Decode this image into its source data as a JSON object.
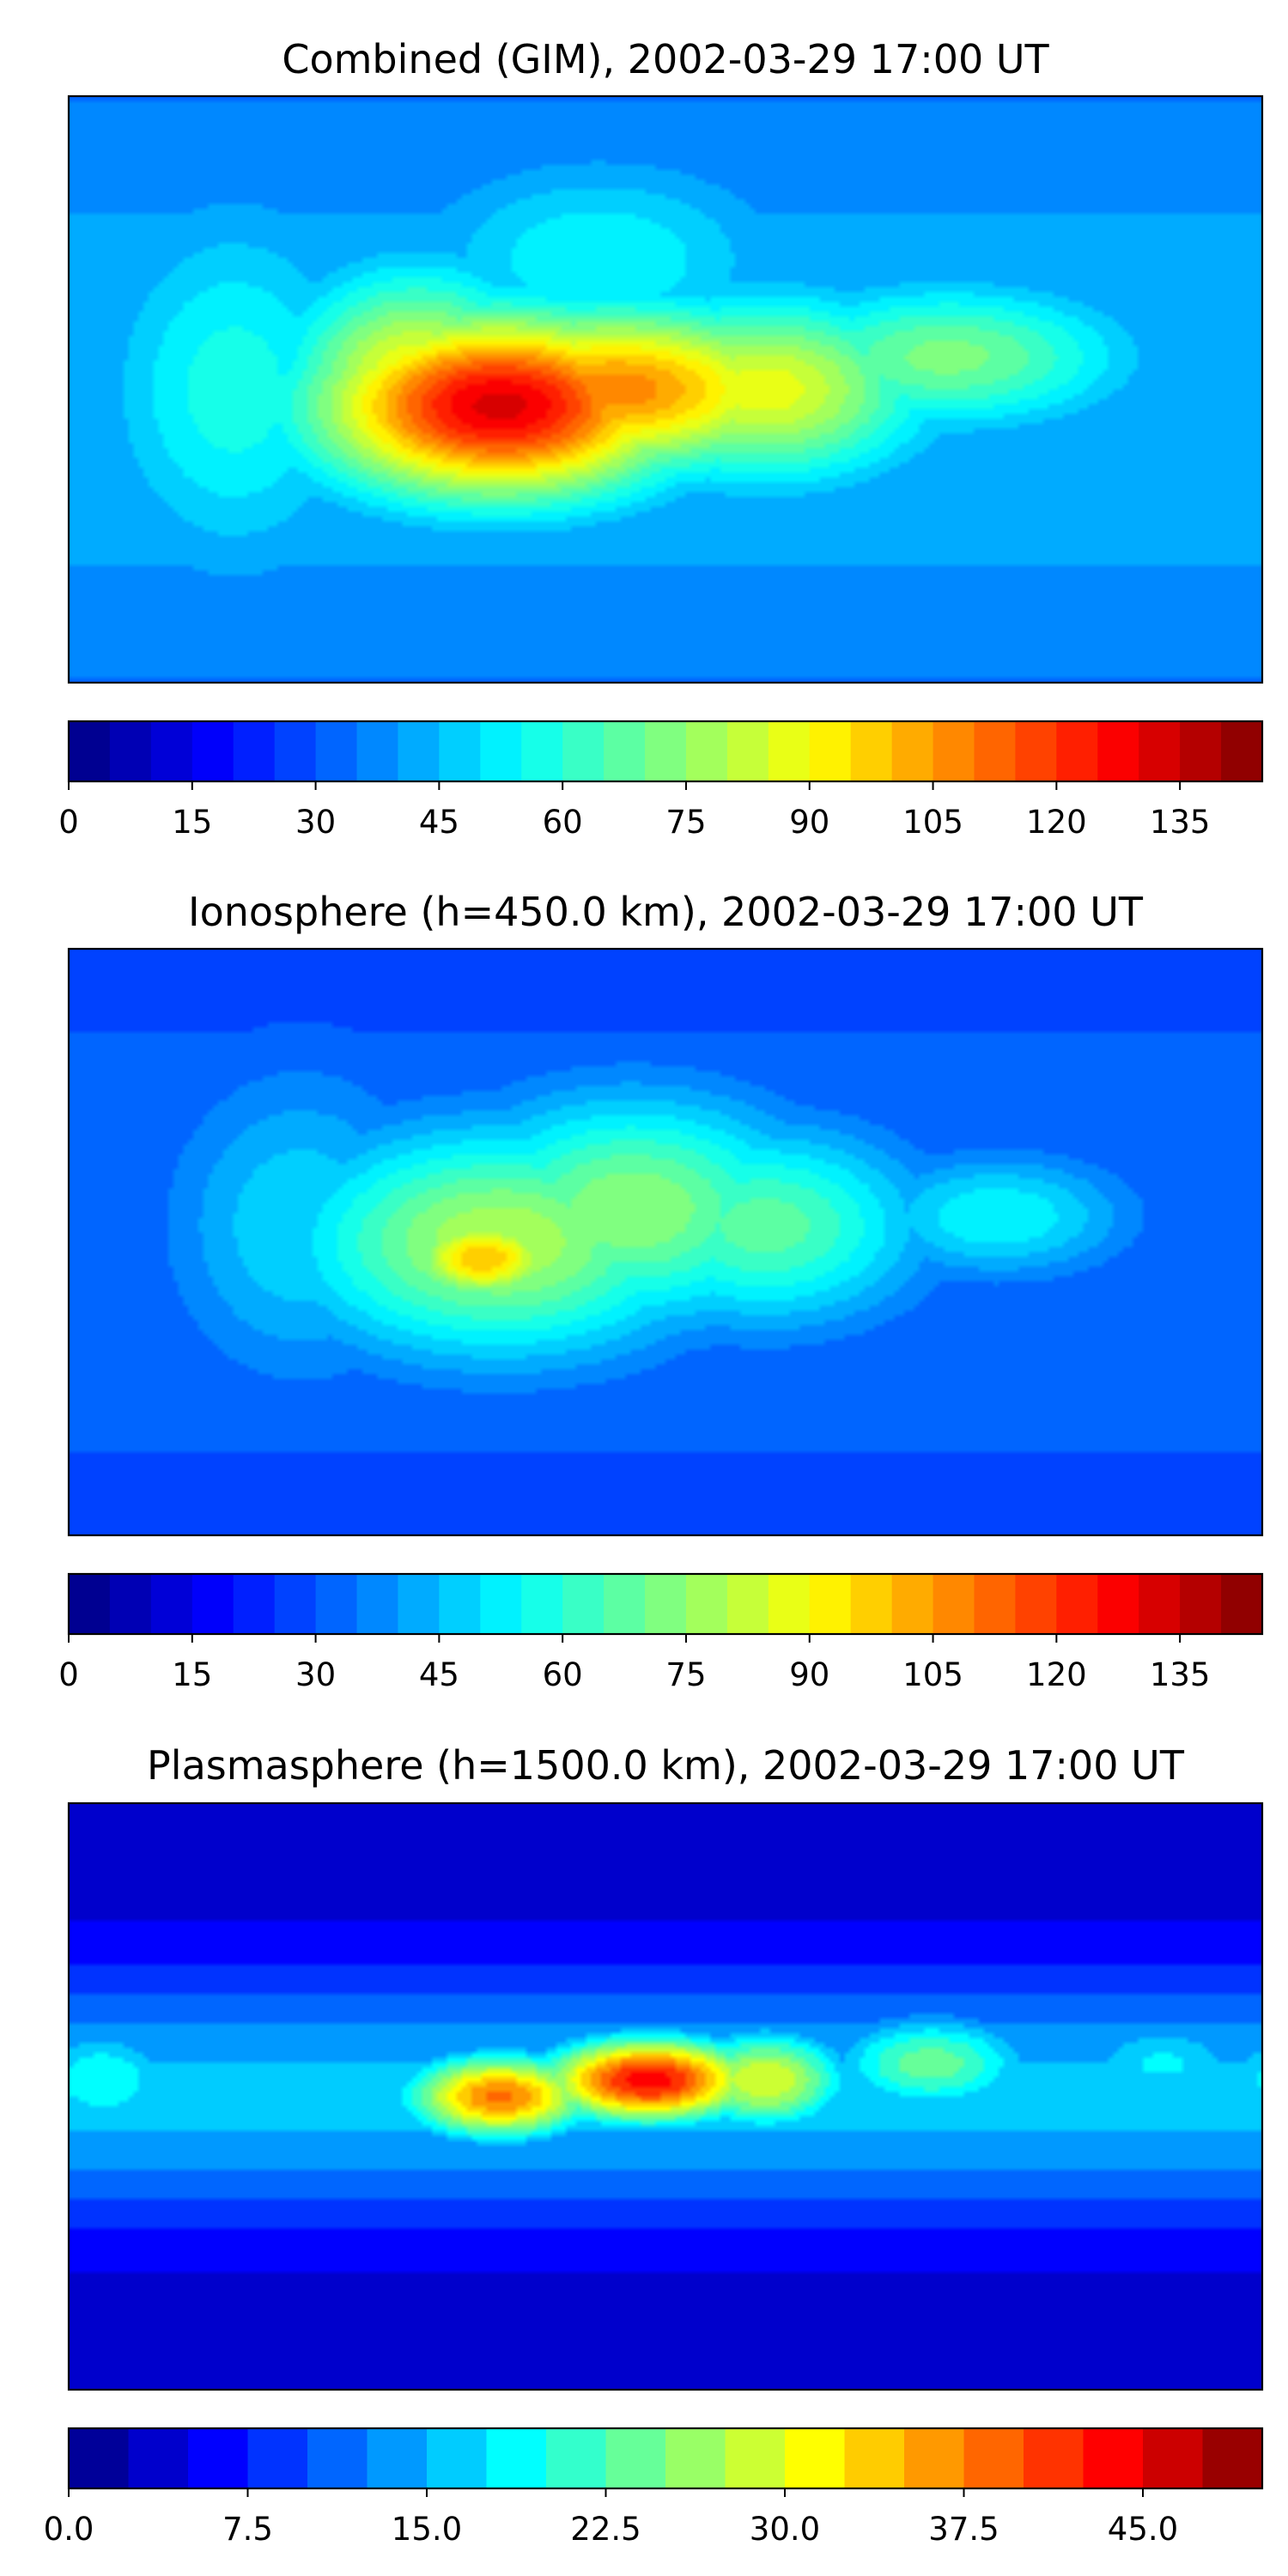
{
  "figure": {
    "colormap": "jet",
    "colors": {
      "coastline": "#000000",
      "frame": "#000000",
      "background": "#ffffff"
    }
  },
  "chart_data": [
    {
      "type": "heatmap",
      "map_projection": "plate carree",
      "title": "Combined (GIM), 2002-03-29 17:00 UT",
      "xlabel": "",
      "ylabel": "",
      "colorbar": {
        "ticks": [
          "0",
          "15",
          "30",
          "45",
          "60",
          "75",
          "90",
          "105",
          "120",
          "135"
        ],
        "range": [
          0,
          145
        ],
        "levels": 29
      },
      "features": [
        {
          "lon": -50,
          "lat": -5,
          "value": 132,
          "sx": 40,
          "sy": 20
        },
        {
          "lon": -15,
          "lat": 0,
          "value": 108,
          "sx": 45,
          "sy": 18
        },
        {
          "lon": -75,
          "lat": 2,
          "value": 92,
          "sx": 28,
          "sy": 24
        },
        {
          "lon": 30,
          "lat": 0,
          "value": 88,
          "sx": 35,
          "sy": 20
        },
        {
          "lon": 85,
          "lat": 10,
          "value": 72,
          "sx": 40,
          "sy": 16
        },
        {
          "lon": -130,
          "lat": 0,
          "value": 58,
          "sx": 30,
          "sy": 40
        },
        {
          "lon": -20,
          "lat": 40,
          "value": 55,
          "sx": 40,
          "sy": 22
        }
      ],
      "baseline": {
        "value": 30,
        "equatorial_boost": 15,
        "latitude_decay": 60
      }
    },
    {
      "type": "heatmap",
      "map_projection": "plate carree",
      "title": "Ionosphere  (h=450.0 km), 2002-03-29 17:00 UT",
      "xlabel": "",
      "ylabel": "",
      "colorbar": {
        "ticks": [
          "0",
          "15",
          "30",
          "45",
          "60",
          "75",
          "90",
          "105",
          "120",
          "135"
        ],
        "range": [
          0,
          145
        ],
        "levels": 29
      },
      "features": [
        {
          "lon": -55,
          "lat": -5,
          "value": 100,
          "sx": 18,
          "sy": 10
        },
        {
          "lon": -50,
          "lat": 0,
          "value": 80,
          "sx": 45,
          "sy": 25
        },
        {
          "lon": -10,
          "lat": 10,
          "value": 75,
          "sx": 40,
          "sy": 25
        },
        {
          "lon": 30,
          "lat": 5,
          "value": 68,
          "sx": 35,
          "sy": 22
        },
        {
          "lon": 100,
          "lat": 8,
          "value": 55,
          "sx": 30,
          "sy": 14
        },
        {
          "lon": -110,
          "lat": 5,
          "value": 50,
          "sx": 30,
          "sy": 35
        }
      ],
      "baseline": {
        "value": 25,
        "equatorial_boost": 10,
        "latitude_decay": 55
      }
    },
    {
      "type": "heatmap",
      "map_projection": "plate carree",
      "title": "Plasmasphere (h=1500.0 km), 2002-03-29 17:00 UT",
      "xlabel": "",
      "ylabel": "",
      "colorbar": {
        "ticks": [
          "0.0",
          "7.5",
          "15.0",
          "22.5",
          "30.0",
          "37.5",
          "45.0"
        ],
        "range": [
          0,
          50
        ],
        "levels": 20
      },
      "features": [
        {
          "lon": -5,
          "lat": 5,
          "value": 44,
          "sx": 25,
          "sy": 10
        },
        {
          "lon": -50,
          "lat": 0,
          "value": 38,
          "sx": 22,
          "sy": 10
        },
        {
          "lon": 30,
          "lat": 5,
          "value": 30,
          "sx": 20,
          "sy": 12
        },
        {
          "lon": 80,
          "lat": 10,
          "value": 24,
          "sx": 25,
          "sy": 12
        },
        {
          "lon": 150,
          "lat": 10,
          "value": 18,
          "sx": 25,
          "sy": 12
        },
        {
          "lon": -170,
          "lat": 5,
          "value": 20,
          "sx": 20,
          "sy": 14
        }
      ],
      "baseline": {
        "value": 3,
        "equatorial_boost": 13,
        "latitude_decay": 28
      }
    }
  ]
}
